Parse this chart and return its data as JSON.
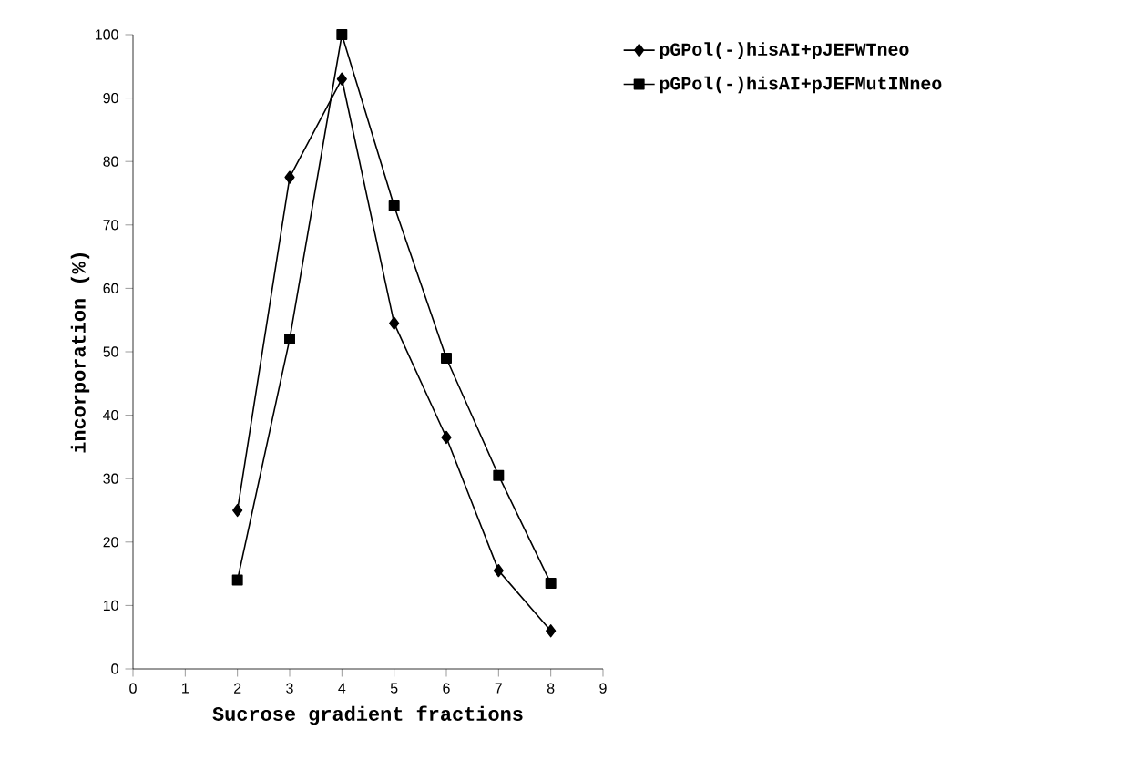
{
  "chart_data": {
    "type": "line",
    "xlabel": "Sucrose gradient fractions",
    "ylabel": "incorporation (%)",
    "x": [
      2,
      3,
      4,
      5,
      6,
      7,
      8
    ],
    "series": [
      {
        "name": "pGPol(-)hisAI+pJEFWTneo",
        "color": "#000000",
        "marker": "diamond",
        "values": [
          25,
          77.5,
          93,
          54.5,
          36.5,
          15.5,
          6
        ]
      },
      {
        "name": "pGPol(-)hisAI+pJEFMutINneo",
        "color": "#000000",
        "marker": "square",
        "values": [
          14,
          52,
          100,
          73,
          49,
          30.5,
          13.5
        ]
      }
    ],
    "xlim": [
      0,
      9
    ],
    "xticks": [
      0,
      1,
      2,
      3,
      4,
      5,
      6,
      7,
      8,
      9
    ],
    "ylim": [
      0,
      100
    ],
    "yticks": [
      0,
      10,
      20,
      30,
      40,
      50,
      60,
      70,
      80,
      90,
      100
    ],
    "grid": false,
    "legend": "top right",
    "line_style": "solid"
  }
}
